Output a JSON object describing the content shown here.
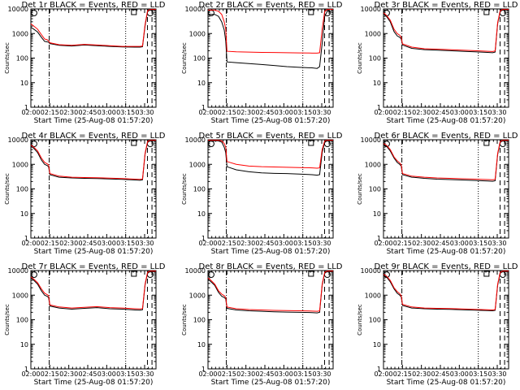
{
  "chart_data": {
    "type": "line",
    "layout": "3x3 grid",
    "x_ticks": [
      "02:00",
      "02:15",
      "02:30",
      "02:45",
      "03:00",
      "03:15",
      "03:30"
    ],
    "x_ticks_min": [
      2.67,
      17.67,
      32.67,
      47.67,
      62.67,
      77.67,
      92.67
    ],
    "xlim_min": [
      2.67,
      101.67
    ],
    "xlabel": "Start Time (25-Aug-08 01:57:20)",
    "ylabel": "Counts/sec",
    "yscale": "log",
    "ylim": [
      1,
      10000
    ],
    "y_ticks": [
      "1",
      "10",
      "100",
      "1000",
      "10000"
    ],
    "y_ticks_val": [
      1,
      10,
      100,
      1000,
      10000
    ],
    "series_colors": {
      "black": "#000000",
      "red": "#ff0000"
    },
    "markers": {
      "dashdot_min": 17.2,
      "dotted_min": 77.67,
      "dashed_min": [
        94.9,
        98.5
      ],
      "box_flag_min": 84.2,
      "circle_flags_min": [
        5.2,
        97.1
      ]
    },
    "x_min": [
      2.67,
      5,
      8,
      11,
      13.5,
      15.5,
      16.7,
      17.7,
      25,
      35,
      45,
      55,
      65,
      75,
      85,
      89,
      91,
      93,
      95,
      97,
      101.67
    ],
    "panels": [
      {
        "title": "Det 1r BLACK = Events, RED = LLD",
        "events": [
          1800,
          1500,
          1150,
          700,
          480,
          460,
          440,
          390,
          330,
          310,
          340,
          320,
          300,
          285,
          280,
          280,
          290,
          2000,
          8000,
          9000,
          9000
        ],
        "lld": [
          2500,
          2000,
          1500,
          900,
          600,
          560,
          500,
          420,
          350,
          330,
          360,
          340,
          320,
          300,
          300,
          300,
          310,
          2300,
          8500,
          9500,
          9500
        ]
      },
      {
        "title": "Det 2r BLACK = Events, RED = LLD",
        "events": [
          6000,
          6000,
          6000,
          5000,
          3000,
          1400,
          500,
          70,
          65,
          60,
          55,
          50,
          45,
          42,
          40,
          38,
          45,
          400,
          5000,
          8000,
          8000
        ],
        "lld": [
          9000,
          9000,
          9000,
          8000,
          6000,
          3000,
          1500,
          190,
          180,
          175,
          170,
          168,
          165,
          162,
          160,
          160,
          165,
          1500,
          8000,
          9500,
          9500
        ]
      },
      {
        "title": "Det 3r BLACK = Events, RED = LLD",
        "events": [
          6500,
          5000,
          3000,
          1200,
          800,
          700,
          600,
          340,
          250,
          220,
          210,
          200,
          190,
          180,
          170,
          165,
          175,
          2500,
          8000,
          9000,
          9000
        ],
        "lld": [
          7000,
          5500,
          3500,
          1500,
          1000,
          850,
          700,
          380,
          280,
          240,
          230,
          220,
          210,
          200,
          190,
          185,
          195,
          2800,
          8500,
          9500,
          9500
        ]
      },
      {
        "title": "Det 4r BLACK = Events, RED = LLD",
        "events": [
          5500,
          4500,
          3000,
          1500,
          1000,
          900,
          800,
          380,
          300,
          280,
          270,
          265,
          255,
          245,
          230,
          225,
          235,
          2500,
          8000,
          9000,
          9000
        ],
        "lld": [
          6000,
          5000,
          3500,
          1800,
          1200,
          1050,
          950,
          420,
          330,
          300,
          290,
          285,
          275,
          265,
          250,
          245,
          255,
          2800,
          8500,
          9500,
          9500
        ]
      },
      {
        "title": "Det 5r BLACK = Events, RED = LLD",
        "events": [
          9000,
          9000,
          9000,
          9000,
          8000,
          5000,
          3000,
          800,
          600,
          500,
          450,
          430,
          420,
          400,
          380,
          360,
          380,
          3000,
          8000,
          9000,
          9000
        ],
        "lld": [
          9500,
          9500,
          9500,
          9500,
          9000,
          7000,
          5000,
          1300,
          1000,
          850,
          800,
          780,
          760,
          740,
          720,
          700,
          720,
          4000,
          9000,
          9500,
          9500
        ]
      },
      {
        "title": "Det 6r BLACK = Events, RED = LLD",
        "events": [
          6500,
          5500,
          3500,
          1800,
          1200,
          1000,
          850,
          380,
          300,
          270,
          250,
          240,
          230,
          220,
          210,
          205,
          215,
          2500,
          8000,
          9000,
          9000
        ],
        "lld": [
          7000,
          6000,
          4000,
          2000,
          1400,
          1150,
          950,
          420,
          330,
          300,
          280,
          270,
          260,
          250,
          240,
          235,
          245,
          2800,
          8500,
          9500,
          9500
        ]
      },
      {
        "title": "Det 7r BLACK = Events, RED = LLD",
        "events": [
          5000,
          4000,
          2800,
          1500,
          1000,
          900,
          800,
          360,
          300,
          270,
          290,
          310,
          280,
          270,
          250,
          245,
          255,
          2500,
          8000,
          9000,
          9000
        ],
        "lld": [
          5500,
          4500,
          3200,
          1800,
          1200,
          1050,
          950,
          400,
          330,
          300,
          320,
          340,
          310,
          300,
          280,
          275,
          285,
          2800,
          8500,
          9500,
          9500
        ]
      },
      {
        "title": "Det 8r BLACK = Events, RED = LLD",
        "events": [
          4500,
          3500,
          2500,
          1300,
          900,
          800,
          700,
          290,
          250,
          230,
          220,
          210,
          205,
          200,
          195,
          190,
          200,
          2500,
          8000,
          9000,
          9000
        ],
        "lld": [
          5000,
          4000,
          2800,
          1500,
          1100,
          950,
          800,
          330,
          280,
          260,
          250,
          240,
          235,
          230,
          225,
          220,
          230,
          2800,
          8500,
          9500,
          9500
        ]
      },
      {
        "title": "Det 9r BLACK = Events, RED = LLD",
        "events": [
          6500,
          5500,
          3500,
          1800,
          1200,
          1000,
          850,
          380,
          300,
          280,
          270,
          265,
          255,
          245,
          235,
          230,
          240,
          2500,
          8000,
          9000,
          9000
        ],
        "lld": [
          7000,
          6000,
          4000,
          2000,
          1400,
          1150,
          950,
          420,
          330,
          300,
          290,
          285,
          275,
          265,
          255,
          250,
          260,
          2800,
          8500,
          9500,
          9500
        ]
      }
    ]
  }
}
